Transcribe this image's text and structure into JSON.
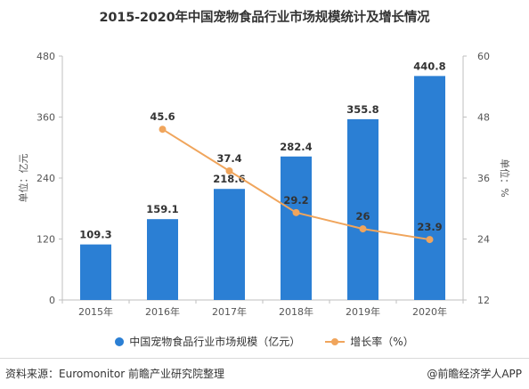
{
  "chart_data": {
    "type": "bar",
    "title": "2015-2020年中国宠物食品行业市场规模统计及增长情况",
    "categories": [
      "2015年",
      "2016年",
      "2017年",
      "2018年",
      "2019年",
      "2020年"
    ],
    "series": [
      {
        "name": "中国宠物食品行业市场规模（亿元）",
        "type": "bar",
        "axis": "left",
        "values": [
          109.3,
          159.1,
          218.6,
          282.4,
          355.8,
          440.8
        ],
        "color": "#2b7fd4"
      },
      {
        "name": "增长率（%）",
        "type": "line",
        "axis": "right",
        "values": [
          null,
          45.6,
          37.4,
          29.2,
          26,
          23.9
        ],
        "color": "#f0a55c"
      }
    ],
    "ylabel_left": "单位：亿元",
    "ylabel_right": "单位：%",
    "ylim_left": [
      0,
      480
    ],
    "yticks_left": [
      0,
      120,
      240,
      360,
      480
    ],
    "ylim_right": [
      12,
      60
    ],
    "yticks_right": [
      12,
      24,
      36,
      48,
      60
    ],
    "grid": false,
    "legend_position": "bottom-center"
  },
  "footer": {
    "source": "资料来源：Euromonitor 前瞻产业研究院整理",
    "brand": "@前瞻经济学人APP"
  }
}
